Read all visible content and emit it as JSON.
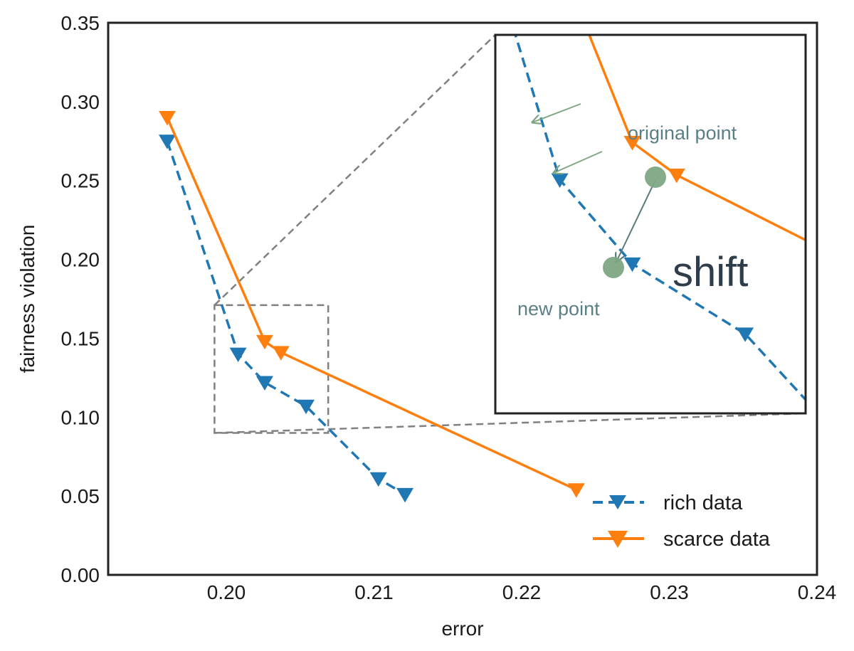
{
  "chart_data": {
    "type": "line",
    "xlabel": "error",
    "ylabel": "fairness violation",
    "xlim": [
      0.192,
      0.24
    ],
    "ylim": [
      0.0,
      0.35
    ],
    "xticks": [
      "0.20",
      "0.21",
      "0.22",
      "0.23",
      "0.24"
    ],
    "yticks": [
      "0.00",
      "0.05",
      "0.10",
      "0.15",
      "0.20",
      "0.25",
      "0.30",
      "0.35"
    ],
    "grid": false,
    "legend_position": "bottom-right",
    "series": [
      {
        "name": "rich data",
        "color": "#1f77b4",
        "style": "dashed",
        "marker": "triangle-down",
        "x": [
          0.196,
          0.2008,
          0.2026,
          0.2054,
          0.2103,
          0.2121
        ],
        "y": [
          0.275,
          0.14,
          0.122,
          0.107,
          0.061,
          0.051
        ]
      },
      {
        "name": "scarce data",
        "color": "#ff7f0e",
        "style": "solid",
        "marker": "triangle-down",
        "x": [
          0.196,
          0.2026,
          0.2037,
          0.2237
        ],
        "y": [
          0.29,
          0.148,
          0.141,
          0.054
        ]
      }
    ],
    "zoom_box": {
      "xlim": [
        0.1992,
        0.2069
      ],
      "ylim": [
        0.09,
        0.171
      ]
    },
    "inset": {
      "annotations": {
        "original": "original point",
        "new": "new point",
        "shift": "shift"
      },
      "marker_color": "#7ea784",
      "arrow_color": "#5a7a7a",
      "hint_arrow_color": "#7ea784"
    }
  }
}
